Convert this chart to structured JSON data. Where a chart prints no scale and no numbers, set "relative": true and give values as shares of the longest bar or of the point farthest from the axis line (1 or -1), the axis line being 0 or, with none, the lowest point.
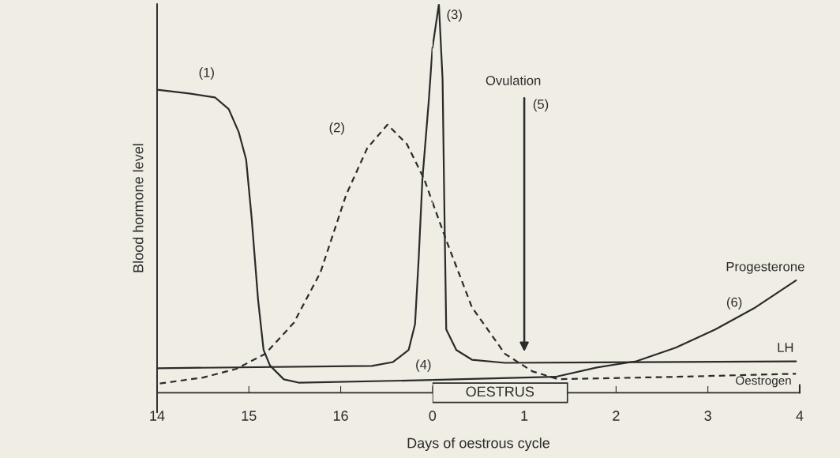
{
  "chart_data": [
    {
      "type": "line",
      "relative": true,
      "ylabel": "Blood hormone level",
      "xlim": [
        14,
        17
      ],
      "xticks": [
        14,
        15,
        16
      ],
      "tick_labels": "x",
      "grid": false,
      "legend": false,
      "marker": "none",
      "series": [
        {
          "color": "#2b2b2b",
          "line_style": "solid",
          "x": [
            14,
            14.35,
            14.63,
            14.78,
            14.89,
            14.97,
            15.03,
            15.1,
            15.16,
            15.23,
            15.38,
            15.55,
            17
          ],
          "values": [
            0.878,
            0.867,
            0.856,
            0.822,
            0.755,
            0.676,
            0.507,
            0.27,
            0.124,
            0.079,
            0.039,
            0.029,
            0.037
          ]
        },
        {
          "color": "#2b2b2b",
          "line_style": "solid",
          "x": [
            14,
            16.34,
            16.57,
            16.74,
            16.81,
            16.85,
            16.89,
            16.96,
            17
          ],
          "values": [
            0.071,
            0.078,
            0.089,
            0.124,
            0.199,
            0.39,
            0.618,
            0.847,
            1.0
          ]
        },
        {
          "color": "#2b2b2b",
          "line_style": "dashed",
          "x": [
            14.03,
            14.5,
            14.86,
            15.18,
            15.49,
            15.78,
            16.06,
            16.29,
            16.51,
            16.72,
            16.91,
            17
          ],
          "values": [
            0.027,
            0.044,
            0.069,
            0.113,
            0.203,
            0.349,
            0.574,
            0.709,
            0.777,
            0.721,
            0.619,
            0.552
          ]
        }
      ],
      "annotations": [
        "(1)",
        "(2)",
        "(4)"
      ]
    },
    {
      "type": "line",
      "relative": true,
      "xlabel": "Days of oestrous cycle",
      "xlim": [
        0,
        4
      ],
      "xticks": [
        0,
        1,
        2,
        3,
        4
      ],
      "tick_labels": "x",
      "grid": false,
      "legend": false,
      "marker": "none",
      "series": [
        {
          "name": "Progesterone",
          "color": "#2b2b2b",
          "line_style": "solid",
          "x": [
            0,
            1.34,
            1.79,
            2.22,
            2.65,
            3.08,
            3.5,
            3.96
          ],
          "values": [
            0.033,
            0.041,
            0.065,
            0.081,
            0.116,
            0.163,
            0.217,
            0.289
          ]
        },
        {
          "name": "LH",
          "color": "#2b2b2b",
          "line_style": "solid",
          "x": [
            0,
            0.07,
            0.11,
            0.13,
            0.15,
            0.26,
            0.43,
            0.79,
            3.96
          ],
          "values": [
            0.888,
            1.0,
            0.807,
            0.467,
            0.163,
            0.11,
            0.085,
            0.077,
            0.081
          ]
        },
        {
          "name": "Oestrogen",
          "color": "#2b2b2b",
          "line_style": "dashed",
          "x": [
            0,
            0.17,
            0.43,
            0.79,
            1.09,
            1.37,
            2.65,
            3.96
          ],
          "values": [
            0.49,
            0.38,
            0.22,
            0.1,
            0.055,
            0.035,
            0.041,
            0.049
          ]
        }
      ],
      "annotations": [
        "(3)",
        "Ovulation",
        "(5)",
        "(6)",
        "OESTRUS"
      ]
    }
  ]
}
